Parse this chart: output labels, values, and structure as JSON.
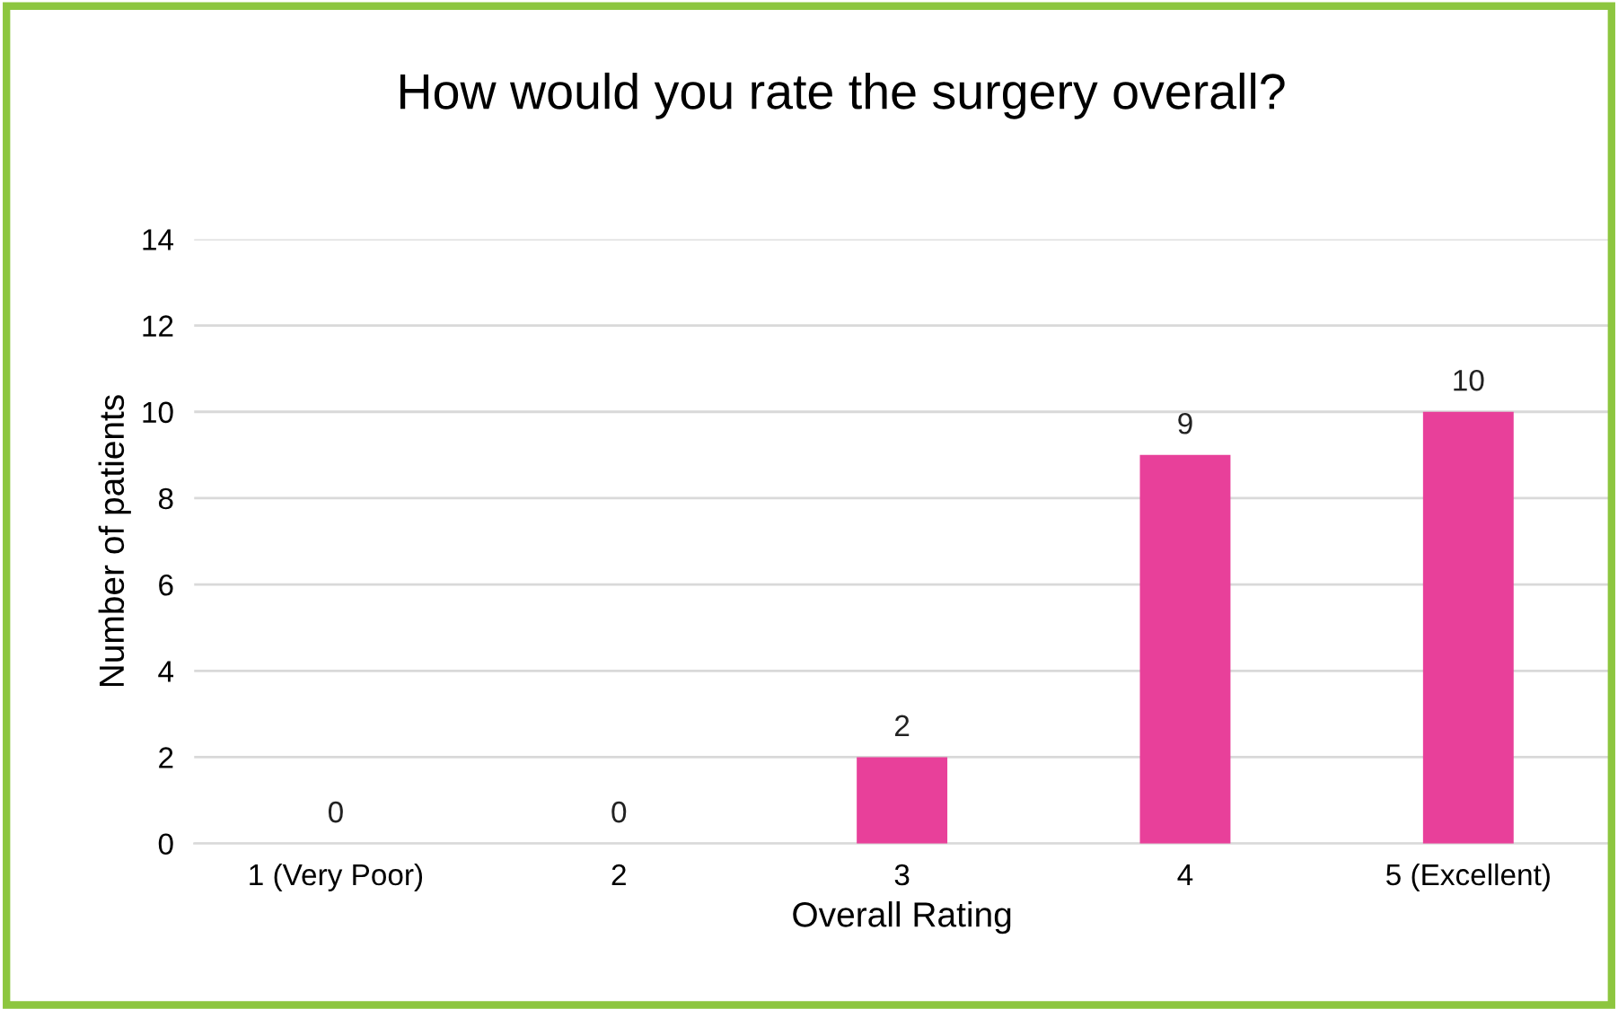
{
  "chart_data": {
    "type": "bar",
    "title": "How would you rate the surgery overall?",
    "xlabel": "Overall Rating",
    "ylabel": "Number of patients",
    "categories": [
      "1 (Very Poor)",
      "2",
      "3",
      "4",
      "5 (Excellent)"
    ],
    "values": [
      0,
      0,
      2,
      9,
      10
    ],
    "color": "#e8409a",
    "ylim": [
      0,
      14
    ],
    "yticks": [
      0,
      2,
      4,
      6,
      8,
      10,
      12,
      14
    ],
    "grid": "y",
    "data_labels": true,
    "legend": false
  }
}
